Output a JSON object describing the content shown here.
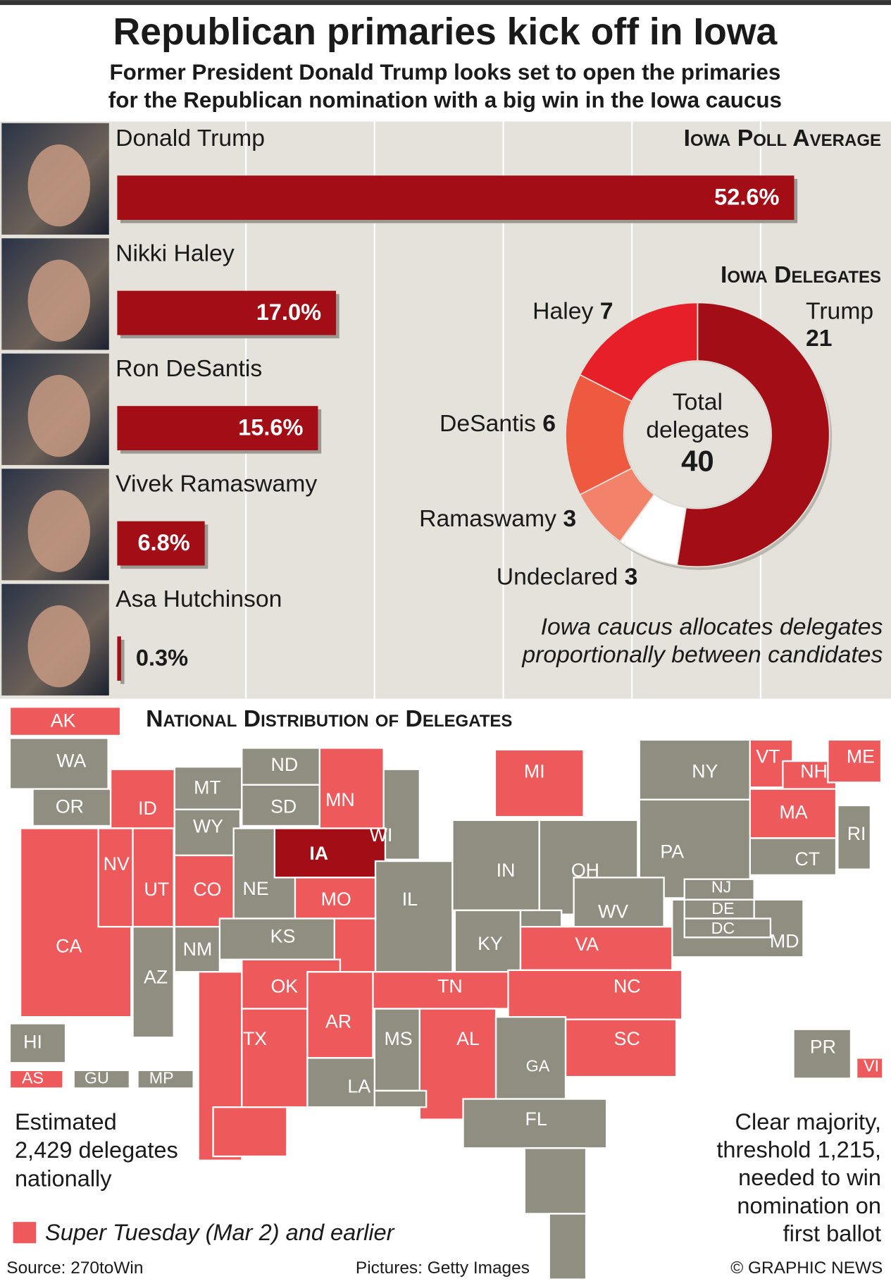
{
  "header": {
    "title": "Republican primaries kick off in Iowa",
    "subtitle": [
      "Former President Donald Trump looks set to open the primaries",
      "for the Republican nomination with a big win in the Iowa caucus"
    ]
  },
  "chart_data": [
    {
      "type": "bar",
      "title": "Iowa Poll Average",
      "categories": [
        "Donald Trump",
        "Nikki Haley",
        "Ron DeSantis",
        "Vivek Ramaswamy",
        "Asa Hutchinson"
      ],
      "values": [
        52.6,
        17.0,
        15.6,
        6.8,
        0.3
      ],
      "value_labels": [
        "52.6%",
        "17.0%",
        "15.6%",
        "6.8%",
        "0.3%"
      ],
      "color": "#a30d16",
      "xlim": [
        0,
        60
      ],
      "xticks": [
        10,
        20,
        30,
        40,
        50
      ],
      "grid": true
    },
    {
      "type": "donut",
      "title": "Iowa Delegates",
      "categories": [
        "Trump",
        "Undeclared",
        "Ramaswamy",
        "DeSantis",
        "Haley"
      ],
      "values": [
        21,
        3,
        3,
        6,
        7
      ],
      "colors": [
        "#a30d16",
        "#ffffff",
        "#f3826b",
        "#ee5a3f",
        "#e61f29"
      ],
      "center_label": [
        "Total",
        "delegates"
      ],
      "total": 40,
      "note": [
        "Iowa caucus allocates delegates",
        "proportionally between candidates"
      ]
    },
    {
      "type": "map",
      "title": "National Distribution of Delegates",
      "states": [
        {
          "label": "AK",
          "color": "#ee5a5c"
        },
        {
          "label": "WA",
          "color": "#8f8e81"
        },
        {
          "label": "OR",
          "color": "#8f8e81"
        },
        {
          "label": "ID",
          "color": "#ee5a5c"
        },
        {
          "label": "MT",
          "color": "#8f8e81"
        },
        {
          "label": "ND",
          "color": "#8f8e81"
        },
        {
          "label": "SD",
          "color": "#8f8e81"
        },
        {
          "label": "WI",
          "color": "#8f8e81"
        },
        {
          "label": "MN",
          "color": "#ee5a5c"
        },
        {
          "label": "MI",
          "color": "#ee5a5c"
        },
        {
          "label": "NY",
          "color": "#8f8e81"
        },
        {
          "label": "VT",
          "color": "#ee5a5c"
        },
        {
          "label": "NH",
          "color": "#ee5a5c"
        },
        {
          "label": "ME",
          "color": "#ee5a5c"
        },
        {
          "label": "MA",
          "color": "#ee5a5c"
        },
        {
          "label": "RI",
          "color": "#8f8e81"
        },
        {
          "label": "CT",
          "color": "#8f8e81"
        },
        {
          "label": "WY",
          "color": "#8f8e81"
        },
        {
          "label": "CA",
          "color": "#ee5a5c"
        },
        {
          "label": "NV",
          "color": "#ee5a5c"
        },
        {
          "label": "UT",
          "color": "#ee5a5c"
        },
        {
          "label": "CO",
          "color": "#ee5a5c"
        },
        {
          "label": "NE",
          "color": "#8f8e81"
        },
        {
          "label": "IA",
          "color": "#a30d16"
        },
        {
          "label": "IL",
          "color": "#8f8e81"
        },
        {
          "label": "IN",
          "color": "#8f8e81"
        },
        {
          "label": "OH",
          "color": "#8f8e81"
        },
        {
          "label": "PA",
          "color": "#8f8e81"
        },
        {
          "label": "MD",
          "color": "#8f8e81"
        },
        {
          "label": "NJ",
          "color": "#8f8e81"
        },
        {
          "label": "DE",
          "color": "#8f8e81"
        },
        {
          "label": "DC",
          "color": "#8f8e81"
        },
        {
          "label": "WV",
          "color": "#8f8e81"
        },
        {
          "label": "MO",
          "color": "#ee5a5c"
        },
        {
          "label": "KS",
          "color": "#8f8e81"
        },
        {
          "label": "AZ",
          "color": "#8f8e81"
        },
        {
          "label": "NM",
          "color": "#8f8e81"
        },
        {
          "label": "KY",
          "color": "#8f8e81"
        },
        {
          "label": "VA",
          "color": "#ee5a5c"
        },
        {
          "label": "OK",
          "color": "#ee5a5c"
        },
        {
          "label": "TX",
          "color": "#ee5a5c"
        },
        {
          "label": "AR",
          "color": "#ee5a5c"
        },
        {
          "label": "TN",
          "color": "#ee5a5c"
        },
        {
          "label": "NC",
          "color": "#ee5a5c"
        },
        {
          "label": "SC",
          "color": "#ee5a5c"
        },
        {
          "label": "MS",
          "color": "#8f8e81"
        },
        {
          "label": "AL",
          "color": "#ee5a5c"
        },
        {
          "label": "GA",
          "color": "#8f8e81"
        },
        {
          "label": "LA",
          "color": "#8f8e81"
        },
        {
          "label": "FL",
          "color": "#8f8e81"
        },
        {
          "label": "HI",
          "color": "#8f8e81"
        },
        {
          "label": "AS",
          "color": "#ee5a5c"
        },
        {
          "label": "GU",
          "color": "#8f8e81"
        },
        {
          "label": "MP",
          "color": "#8f8e81"
        },
        {
          "label": "PR",
          "color": "#8f8e81"
        },
        {
          "label": "VI",
          "color": "#ee5a5c"
        }
      ],
      "legend": {
        "label": "Super Tuesday (Mar 2) and earlier",
        "color": "#ee5a5c"
      },
      "note_left": [
        "Estimated",
        "2,429 delegates",
        "nationally"
      ],
      "note_right": [
        "Clear majority,",
        "threshold 1,215,",
        "needed to win",
        "nomination on",
        "first ballot"
      ]
    }
  ],
  "footer": {
    "source": "Source: 270toWin",
    "pictures": "Pictures: Getty Images",
    "credit": "© GRAPHIC NEWS"
  }
}
